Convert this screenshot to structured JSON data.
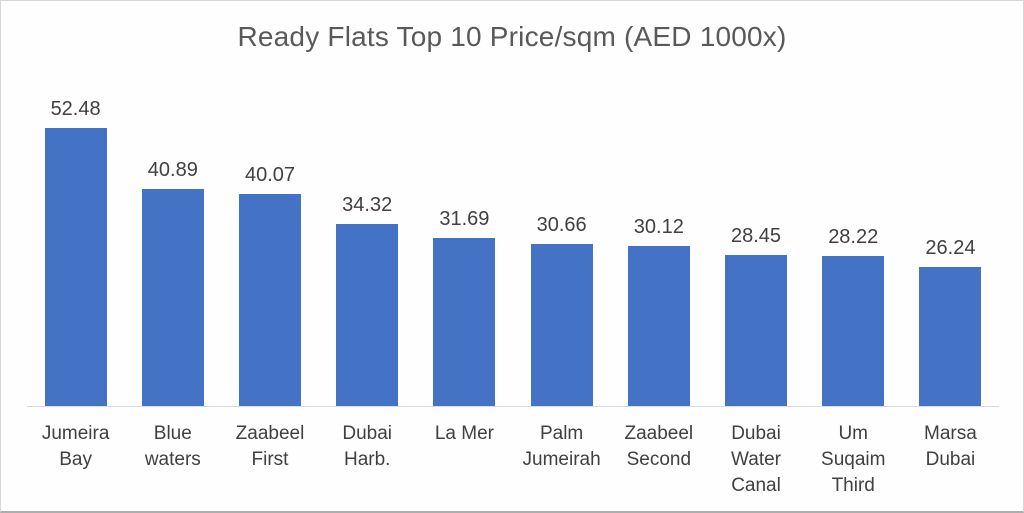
{
  "chart_title": "Ready Flats Top 10 Price/sqm (AED 1000x)",
  "colors": {
    "bar_fill": "#4472C4",
    "title_text": "#595959",
    "label_text": "#404040",
    "axis_line": "#D9D9D9"
  },
  "chart_data": {
    "type": "bar",
    "title": "Ready Flats Top 10 Price/sqm (AED 1000x)",
    "categories": [
      "Jumeira Bay",
      "Blue waters",
      "Zaabeel First",
      "Dubai Harb.",
      "La Mer",
      "Palm Jumeirah",
      "Zaabeel Second",
      "Dubai Water Canal",
      "Um Suqaim Third",
      "Marsa Dubai"
    ],
    "values": [
      52.48,
      40.89,
      40.07,
      34.32,
      31.69,
      30.66,
      30.12,
      28.45,
      28.22,
      26.24
    ],
    "value_labels": [
      "52.48",
      "40.89",
      "40.07",
      "34.32",
      "31.69",
      "30.66",
      "30.12",
      "28.45",
      "28.22",
      "26.24"
    ],
    "xlabel": "",
    "ylabel": "",
    "ylim": [
      0,
      60
    ],
    "grid": false,
    "legend": false,
    "data_labels_shown": true,
    "y_axis_shown": false
  }
}
